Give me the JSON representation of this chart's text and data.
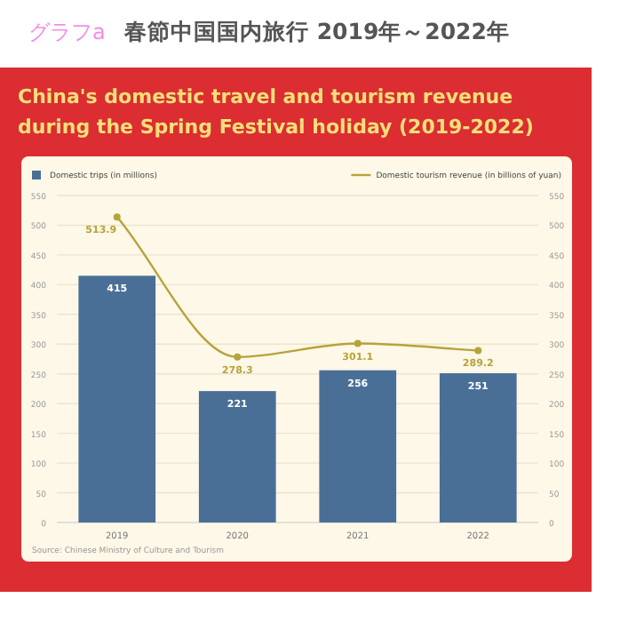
{
  "chart_data": {
    "type": "bar",
    "title": "春節中国国内旅行 2019年～2022年",
    "subtitle": "China's domestic travel and tourism revenue during the Spring Festival holiday (2019-2022)",
    "annotations": [
      "グラフa",
      "Source: Chinese Ministry of Culture and Tourism"
    ],
    "categories": [
      "2019",
      "2020",
      "2021",
      "2022"
    ],
    "series": [
      {
        "name": "Domestic trips (in millions)",
        "color": "#4a6f97",
        "values": [
          415,
          221,
          256,
          251
        ]
      },
      {
        "name": "Domestic tourism revenue (in billions of yuan)",
        "type": "line",
        "axis": "y2",
        "color": "#b8a33a",
        "marker": "circle",
        "values": [
          513.9,
          278.3,
          301.1,
          289.2
        ]
      }
    ],
    "ylim": [
      0,
      550
    ],
    "yticks": [
      0,
      50,
      100,
      150,
      200,
      250,
      300,
      350,
      400,
      450,
      500,
      550
    ],
    "y2lim": [
      0,
      550
    ],
    "y2ticks": [
      0,
      50,
      100,
      150,
      200,
      250,
      300,
      350,
      400,
      450,
      500,
      550
    ],
    "grid": "y",
    "legend": "top",
    "data_labels": true
  }
}
